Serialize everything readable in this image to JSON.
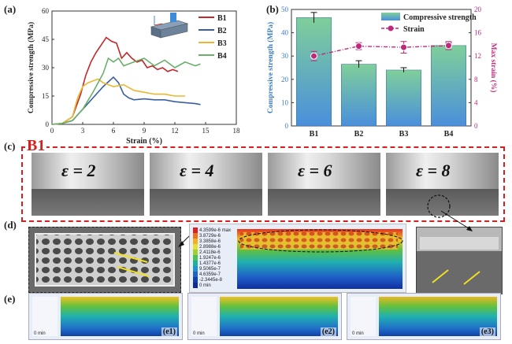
{
  "panels": {
    "a": "(a)",
    "b": "(b)",
    "c": "(c)",
    "d": "(d)",
    "e": "(e)"
  },
  "colors": {
    "B1": "#c0282a",
    "B2": "#3a5fa0",
    "B3": "#e8b830",
    "B4": "#6aaf6a",
    "strain": "#c0287a",
    "bar_top": "#7cc4a0",
    "bar_bottom": "#4f8fd8",
    "dashed_box": "#d62020"
  },
  "chart_data": [
    {
      "type": "line",
      "panel": "(a)",
      "xlabel": "Strain (%)",
      "ylabel": "Compressive strength (MPa)",
      "xlim": [
        0,
        18
      ],
      "ylim": [
        0,
        60
      ],
      "xticks": [
        "0",
        "3",
        "6",
        "9",
        "12",
        "15",
        "18"
      ],
      "yticks": [
        "0",
        "15",
        "30",
        "45",
        "60"
      ],
      "legend_position": "top-right",
      "series": [
        {
          "name": "B1",
          "x": [
            0,
            1,
            2,
            2.8,
            3.3,
            3.8,
            4.3,
            4.8,
            5.3,
            5.8,
            6.3,
            6.8,
            7.3,
            7.8,
            8.3,
            8.8,
            9.3,
            9.8,
            10.3,
            10.8,
            11.3,
            11.8,
            12.3
          ],
          "y": [
            0,
            0.5,
            4,
            16,
            26,
            33,
            38,
            42,
            46,
            44,
            43,
            35,
            38,
            35,
            33,
            34,
            30,
            31,
            29,
            30,
            28,
            29,
            28
          ]
        },
        {
          "name": "B2",
          "x": [
            0,
            1,
            2,
            3,
            4,
            5,
            6,
            6.5,
            7,
            7.5,
            8,
            9,
            10,
            11,
            12,
            13,
            14,
            14.5
          ],
          "y": [
            0,
            0.5,
            2,
            8,
            14,
            20,
            25,
            22,
            16,
            14,
            13,
            13.5,
            13,
            13,
            12,
            11.5,
            11,
            10.5
          ]
        },
        {
          "name": "B3",
          "x": [
            0,
            1,
            2,
            2.5,
            3,
            3.5,
            4,
            4.5,
            5,
            6,
            7,
            8,
            9,
            10,
            11,
            12,
            13
          ],
          "y": [
            0,
            0.5,
            4,
            14,
            20,
            22,
            23,
            24,
            22,
            20,
            21,
            18,
            17,
            16,
            16,
            15,
            15
          ]
        },
        {
          "name": "B4",
          "x": [
            0,
            1,
            2,
            3,
            4,
            5,
            5.5,
            6,
            6.5,
            7,
            8,
            9,
            10,
            11,
            12,
            13,
            14,
            14.5
          ],
          "y": [
            0,
            0.5,
            2,
            8,
            17,
            27,
            35,
            33,
            35,
            31,
            33,
            35,
            31,
            34,
            30,
            33,
            31,
            32
          ]
        }
      ]
    },
    {
      "type": "bar",
      "panel": "(b)",
      "categories": [
        "B1",
        "B2",
        "B3",
        "B4"
      ],
      "series": [
        {
          "name": "Compressive strength",
          "values": [
            46.5,
            26.5,
            24,
            34.5
          ],
          "errors": [
            2.2,
            1.5,
            1.0,
            1.2
          ]
        },
        {
          "name": "Strain",
          "values": [
            12,
            13.7,
            13.5,
            13.8
          ],
          "errors": [
            0.8,
            0.6,
            1.0,
            0.7
          ]
        }
      ],
      "ylabel": "Compressive strength (MPa)",
      "ylabel_right": "Max strain (%)",
      "ylim": [
        0,
        50
      ],
      "ylim_right": [
        0,
        20
      ],
      "yticks": [
        "0",
        "10",
        "20",
        "30",
        "40",
        "50"
      ],
      "yticks_right": [
        "0",
        "4",
        "8",
        "12",
        "16",
        "20"
      ],
      "legend_position": "top-right"
    }
  ],
  "panel_c": {
    "title": "B1",
    "frames": [
      "ε = 2",
      "ε = 4",
      "ε = 6",
      "ε = 8"
    ]
  },
  "panel_d": {
    "legend_values": [
      "4.3599e-6 max",
      "3.8729e-6",
      "3.3858e-6",
      "2.8988e-6",
      "2.4118e-6",
      "1.9247e-6",
      "1.4377e-6",
      "9.5065e-7",
      "4.6359e-7",
      "-2.3445e-8",
      "0 min"
    ]
  },
  "panel_e": {
    "subpanels": [
      "(e1)",
      "(e2)",
      "(e3)"
    ],
    "minlabel": "0 min"
  }
}
